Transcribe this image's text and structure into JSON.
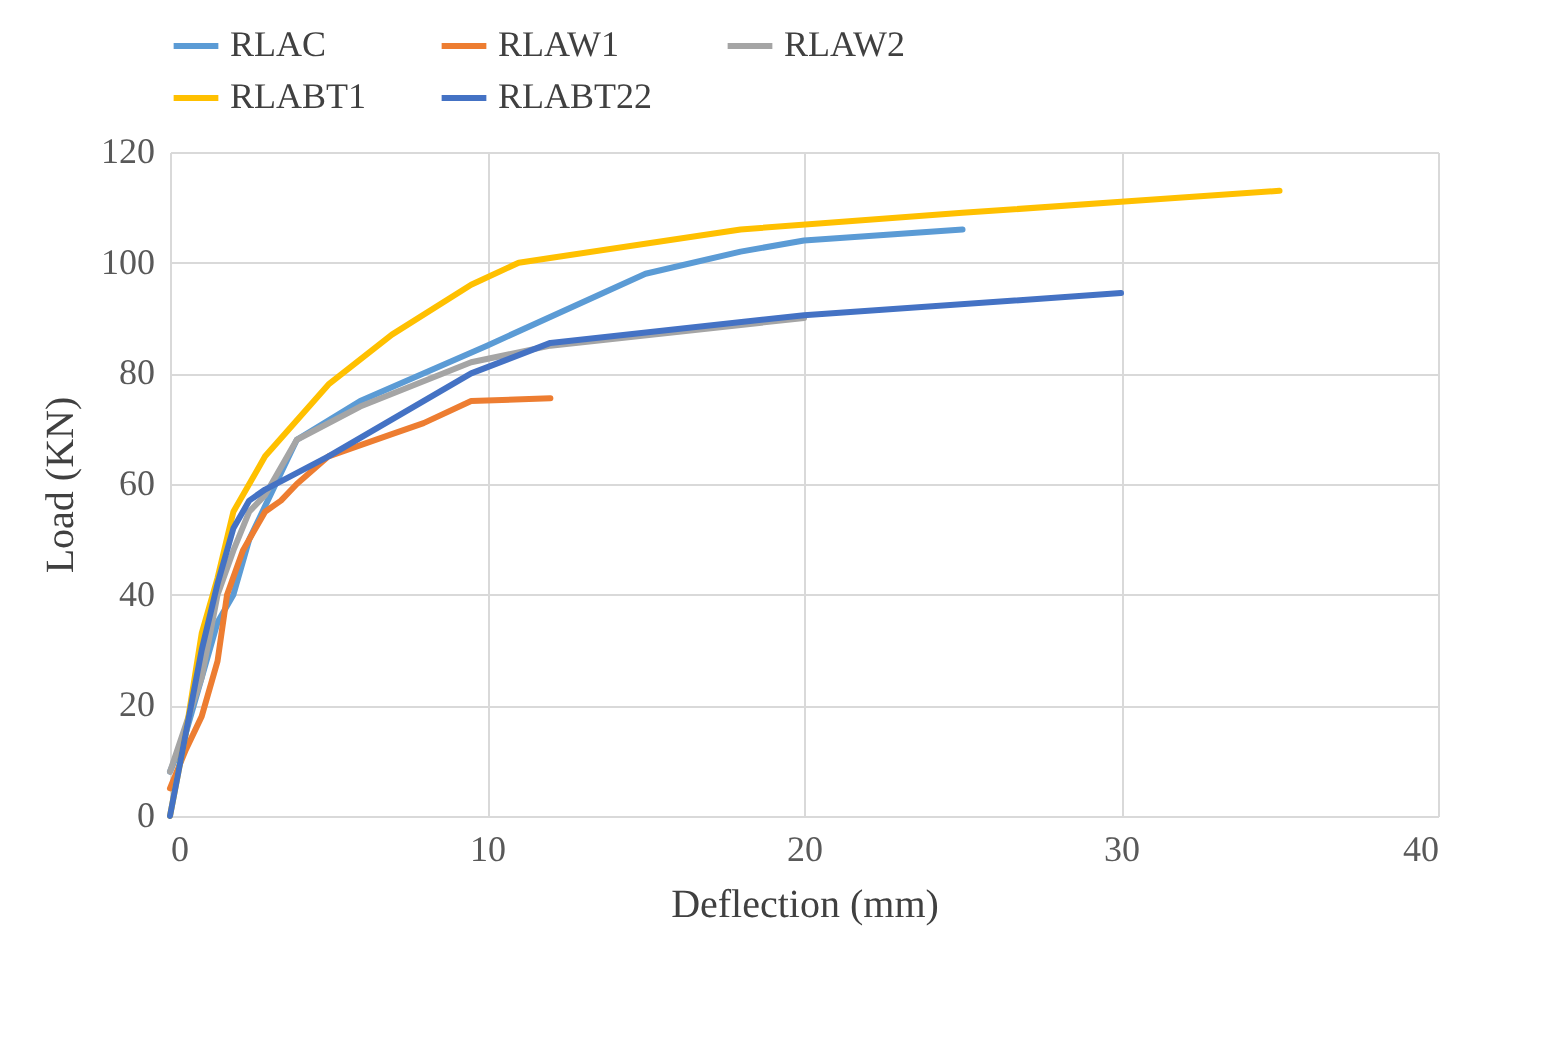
{
  "chart_data": {
    "type": "line",
    "xlabel": "Deflection (mm)",
    "ylabel": "Load (KN)",
    "xlim": [
      0,
      40
    ],
    "xticks": [
      0,
      10,
      20,
      30,
      40
    ],
    "ylim": [
      0,
      120
    ],
    "yticks": [
      0,
      20,
      40,
      60,
      80,
      100,
      120
    ],
    "grid": true,
    "legend": "top",
    "marker": "none",
    "line_style": "solid",
    "series": [
      {
        "name": "RLAC",
        "color": "#5b9bd5",
        "x": [
          0,
          0.5,
          1,
          1.5,
          2,
          2.5,
          3,
          3.5,
          4,
          6,
          10,
          15,
          18,
          20,
          25
        ],
        "values": [
          8,
          15,
          25,
          35,
          40,
          50,
          56,
          62,
          68,
          75,
          85,
          98,
          102,
          104,
          106
        ]
      },
      {
        "name": "RLAW1",
        "color": "#ed7d31",
        "x": [
          0,
          0.5,
          1,
          1.5,
          1.8,
          2.3,
          3,
          3.5,
          4,
          5,
          7,
          8,
          9.5,
          12
        ],
        "values": [
          5,
          12,
          18,
          28,
          40,
          48,
          55,
          57,
          60,
          65,
          69,
          71,
          75,
          75.5
        ]
      },
      {
        "name": "RLAW2",
        "color": "#a5a5a5",
        "x": [
          0,
          1,
          1.5,
          2,
          2.5,
          3,
          4,
          6,
          9.5,
          12,
          20
        ],
        "values": [
          8,
          25,
          40,
          48,
          55,
          58,
          68,
          74,
          82,
          85,
          90
        ]
      },
      {
        "name": "RLABT1",
        "color": "#ffc000",
        "x": [
          0,
          0.5,
          1,
          1.5,
          2,
          3,
          5,
          7,
          9.5,
          11,
          18,
          25,
          30,
          35
        ],
        "values": [
          0,
          15,
          33,
          43,
          55,
          65,
          78,
          87,
          96,
          100,
          106,
          109,
          111,
          113
        ]
      },
      {
        "name": "RLABT22",
        "color": "#4472c4",
        "x": [
          0,
          0.5,
          1,
          1.5,
          2,
          2.5,
          3,
          5,
          9.5,
          12,
          20,
          30
        ],
        "values": [
          0,
          15,
          30,
          42,
          52,
          57,
          59,
          65,
          80,
          85.5,
          90.5,
          94.5
        ]
      }
    ]
  }
}
